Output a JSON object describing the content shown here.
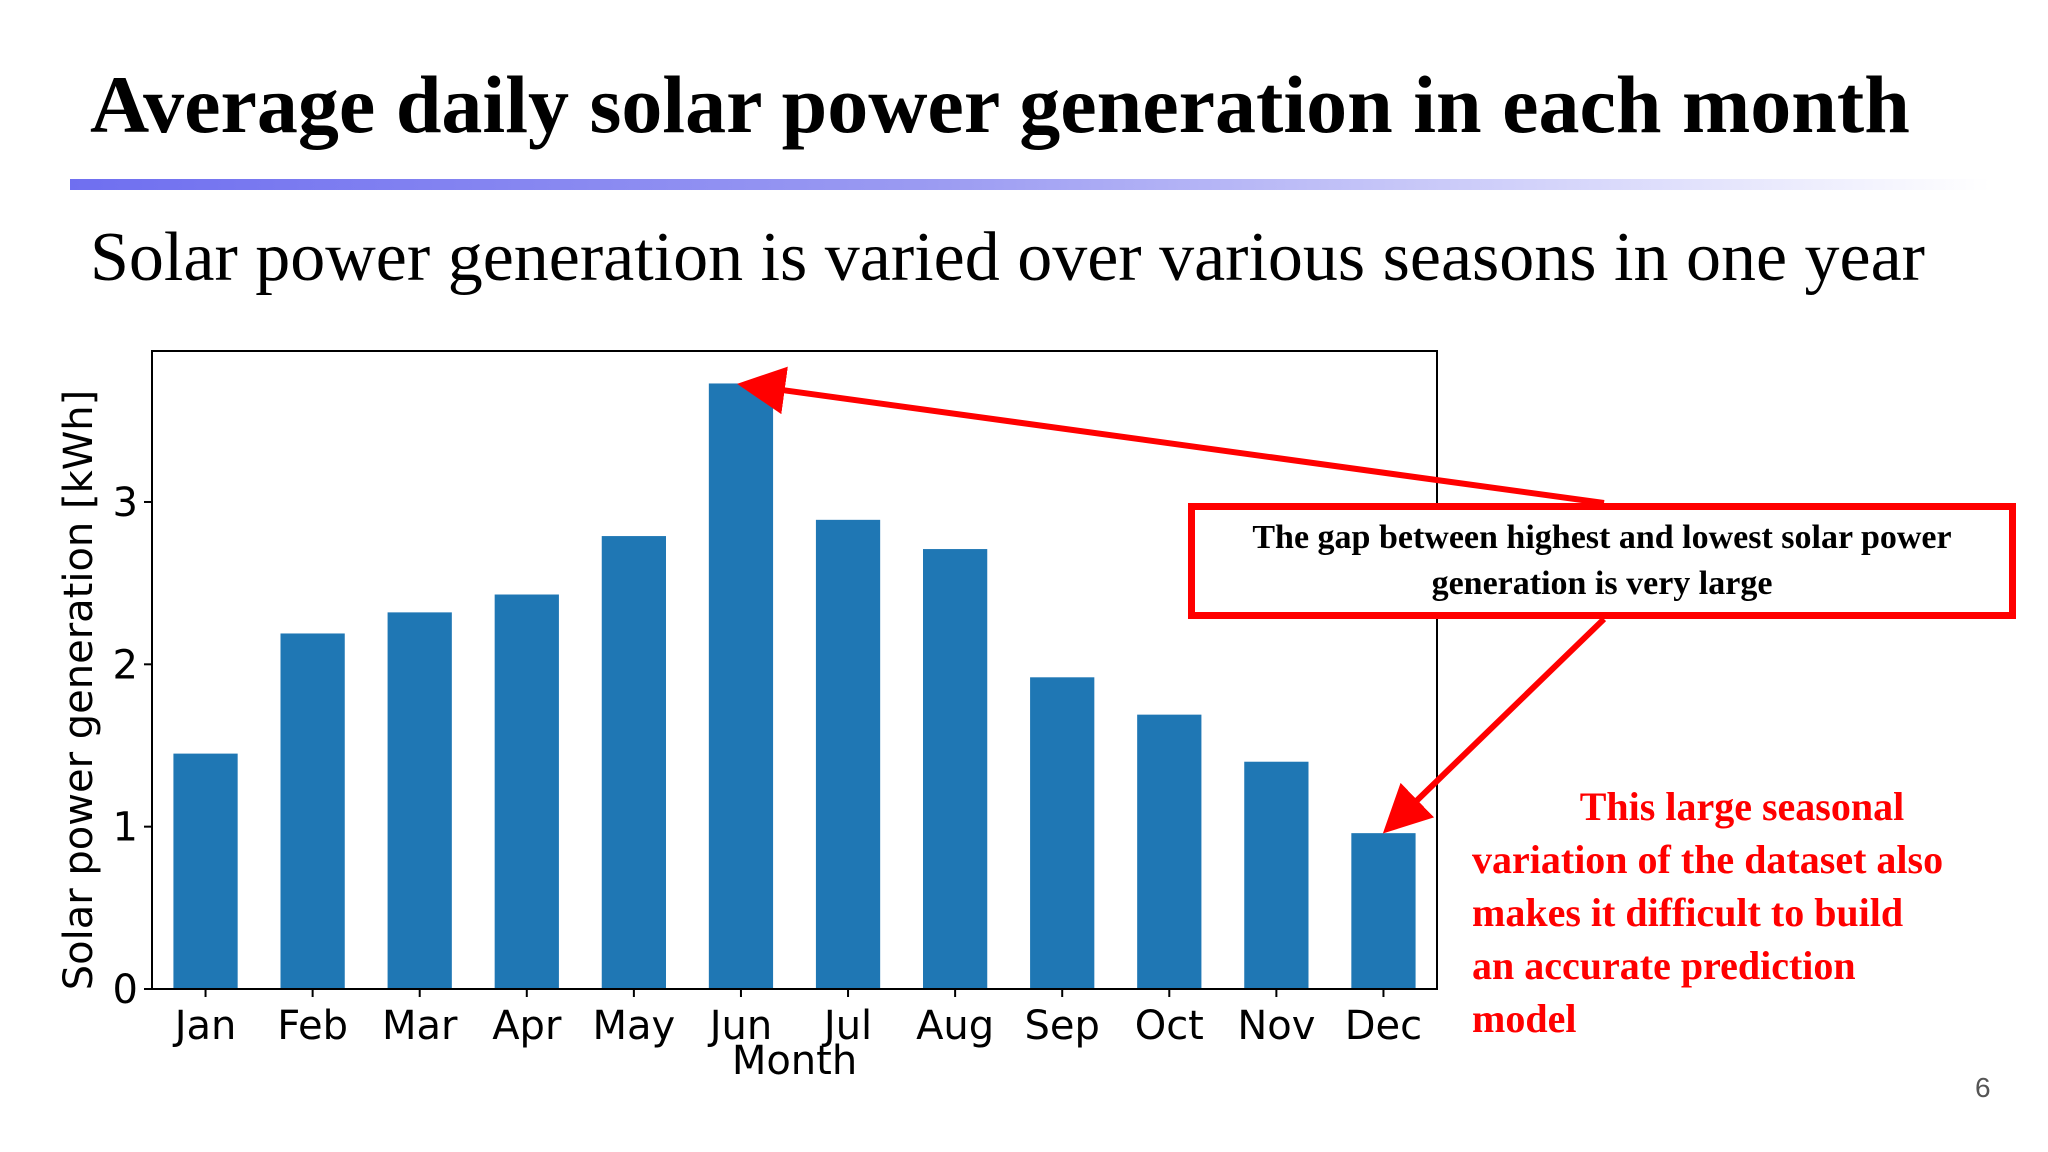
{
  "slide": {
    "title": "Average daily solar power generation in each month",
    "subtitle": "Solar power generation is varied over various seasons in one year",
    "page_number": "6",
    "callout": "The gap between highest and lowest solar power generation is very large",
    "note_lines": [
      "This large seasonal",
      "variation of the dataset also",
      "makes it difficult to build",
      "an accurate prediction",
      "model"
    ],
    "accent_color": "#ff0000",
    "rule_color": "#6f6ff0"
  },
  "chart_data": {
    "type": "bar",
    "categories": [
      "Jan",
      "Feb",
      "Mar",
      "Apr",
      "May",
      "Jun",
      "Jul",
      "Aug",
      "Sep",
      "Oct",
      "Nov",
      "Dec"
    ],
    "values": [
      1.45,
      2.19,
      2.32,
      2.43,
      2.79,
      3.73,
      2.89,
      2.71,
      1.92,
      1.69,
      1.4,
      0.96
    ],
    "title": "",
    "xlabel": "Month",
    "ylabel": "Solar power generation [kWh]",
    "ylim": [
      0,
      3.93
    ],
    "yticks": [
      0,
      1,
      2,
      3
    ],
    "grid": false,
    "bar_color": "#1f77b4"
  }
}
